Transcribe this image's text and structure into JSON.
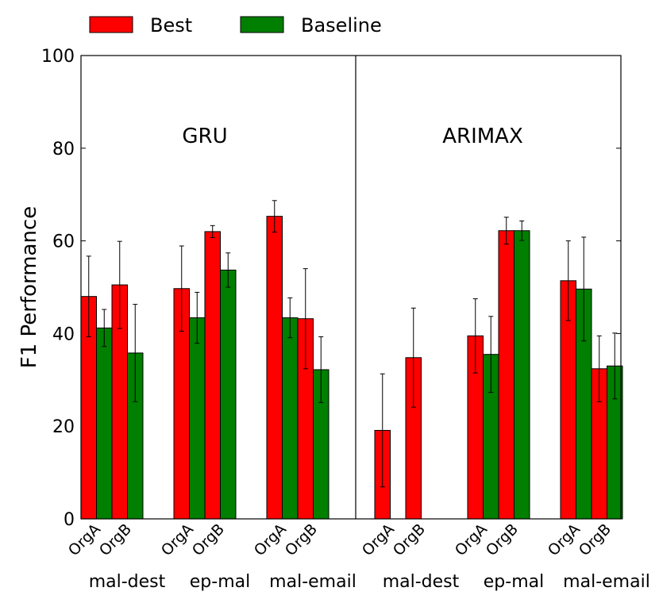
{
  "chart_data": {
    "type": "bar",
    "ylabel": "F1 Performance",
    "ylim": [
      0,
      100
    ],
    "yticks": [
      "0",
      "20",
      "40",
      "60",
      "80",
      "100"
    ],
    "legend": {
      "placement": "top-left, above plot",
      "entries": [
        {
          "name": "Best",
          "color": "#ff0000"
        },
        {
          "name": "Baseline",
          "color": "#007f00"
        }
      ]
    },
    "panels": [
      {
        "label": "GRU",
        "groups": [
          {
            "label": "mal-dest",
            "orgs": [
              {
                "org": "OrgA",
                "best": 48.0,
                "best_err": 8.7,
                "baseline": 41.2,
                "baseline_err": 4.0
              },
              {
                "org": "OrgB",
                "best": 50.5,
                "best_err": 9.4,
                "baseline": 35.8,
                "baseline_err": 10.5
              }
            ]
          },
          {
            "label": "ep-mal",
            "orgs": [
              {
                "org": "OrgA",
                "best": 49.7,
                "best_err": 9.2,
                "baseline": 43.4,
                "baseline_err": 5.5
              },
              {
                "org": "OrgB",
                "best": 62.0,
                "best_err": 1.3,
                "baseline": 53.7,
                "baseline_err": 3.7
              }
            ]
          },
          {
            "label": "mal-email",
            "orgs": [
              {
                "org": "OrgA",
                "best": 65.3,
                "best_err": 3.4,
                "baseline": 43.4,
                "baseline_err": 4.3
              },
              {
                "org": "OrgB",
                "best": 43.2,
                "best_err": 10.8,
                "baseline": 32.2,
                "baseline_err": 7.1
              }
            ]
          }
        ]
      },
      {
        "label": "ARIMAX",
        "groups": [
          {
            "label": "mal-dest",
            "orgs": [
              {
                "org": "OrgA",
                "best": 19.1,
                "best_err": 12.2,
                "baseline": 0,
                "baseline_err": 0
              },
              {
                "org": "OrgB",
                "best": 34.8,
                "best_err": 10.7,
                "baseline": 0,
                "baseline_err": 0
              }
            ]
          },
          {
            "label": "ep-mal",
            "orgs": [
              {
                "org": "OrgA",
                "best": 39.5,
                "best_err": 8.0,
                "baseline": 35.5,
                "baseline_err": 8.2
              },
              {
                "org": "OrgB",
                "best": 62.2,
                "best_err": 2.9,
                "baseline": 62.2,
                "baseline_err": 2.1
              }
            ]
          },
          {
            "label": "mal-email",
            "orgs": [
              {
                "org": "OrgA",
                "best": 51.4,
                "best_err": 8.6,
                "baseline": 49.6,
                "baseline_err": 11.2
              },
              {
                "org": "OrgB",
                "best": 32.4,
                "best_err": 7.1,
                "baseline": 33.0,
                "baseline_err": 7.1
              }
            ]
          }
        ]
      }
    ]
  }
}
